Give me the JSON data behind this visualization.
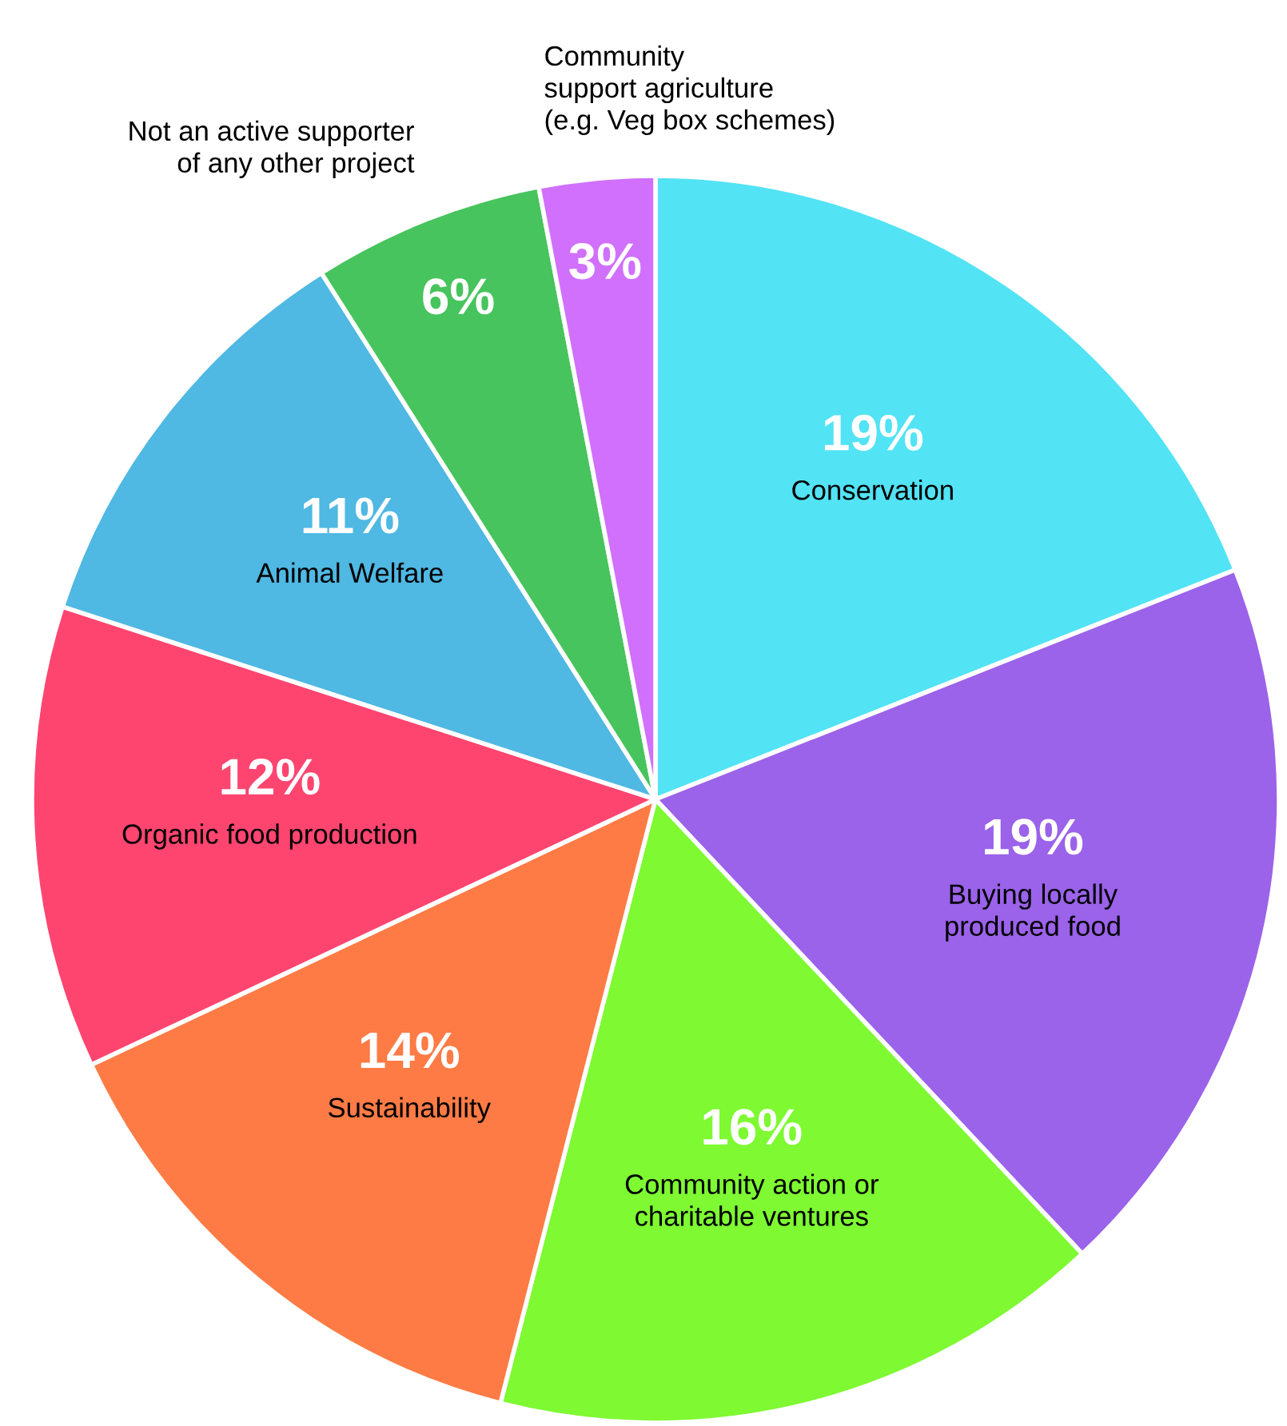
{
  "chart_data": {
    "type": "pie",
    "categories": [
      "Conservation",
      "Buying locally\nproduced food",
      "Community action or\ncharitable ventures",
      "Sustainability",
      "Organic food production",
      "Animal Welfare",
      "Not an active supporter\nof any other project",
      "Community\nsupport agriculture\n(e.g. Veg box schemes)"
    ],
    "values": [
      19,
      19,
      16,
      14,
      12,
      11,
      6,
      3
    ],
    "value_labels": [
      "19%",
      "19%",
      "16%",
      "14%",
      "12%",
      "11%",
      "6%",
      "3%"
    ],
    "colors": [
      "#52e3f5",
      "#9b62ea",
      "#7ef932",
      "#fe7b45",
      "#fe4570",
      "#4fb8e3",
      "#47c45d",
      "#d070fc"
    ]
  }
}
